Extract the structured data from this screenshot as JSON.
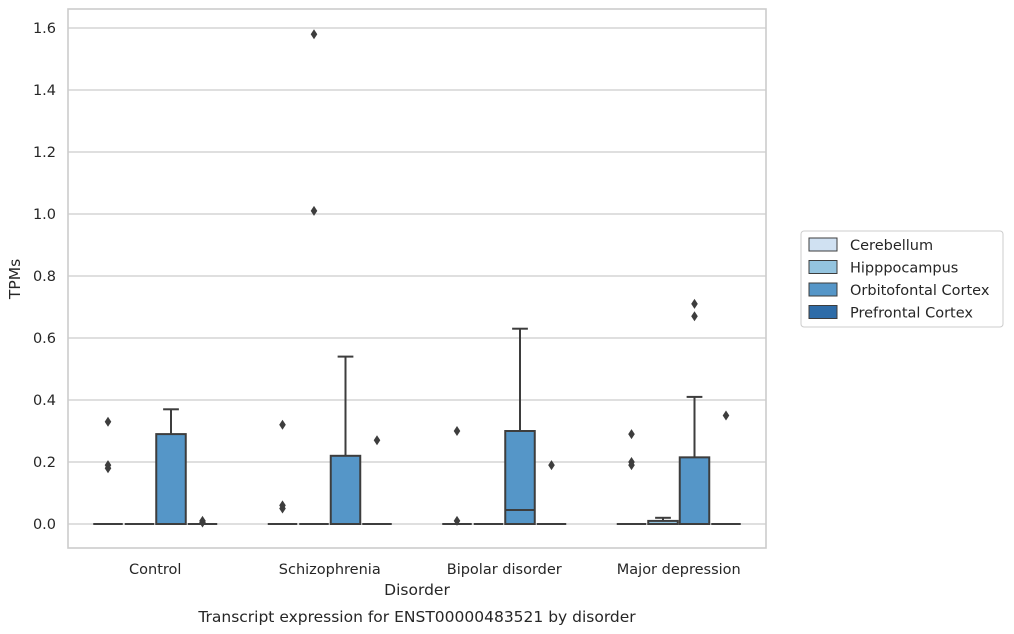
{
  "chart_data": {
    "type": "box",
    "title": "",
    "caption": "Transcript expression for ENST00000483521 by disorder",
    "xlabel": "Disorder",
    "ylabel": "TPMs",
    "ylim": [
      -0.08,
      1.66
    ],
    "yticks": [
      "0.0",
      "0.2",
      "0.4",
      "0.6",
      "0.8",
      "1.0",
      "1.2",
      "1.4",
      "1.6"
    ],
    "grid": true,
    "legend_position": "right",
    "categories": [
      "Control",
      "Schizophrenia",
      "Bipolar disorder",
      "Major depression"
    ],
    "series": [
      {
        "name": "Cerebellum",
        "color": "#d0e1f2",
        "boxes": [
          {
            "q1": 0,
            "median": 0,
            "q3": 0,
            "whislo": 0,
            "whishi": 0,
            "fliers": [
              0.33,
              0.19,
              0.18
            ]
          },
          {
            "q1": 0,
            "median": 0,
            "q3": 0,
            "whislo": 0,
            "whishi": 0,
            "fliers": [
              0.32,
              0.06,
              0.05
            ]
          },
          {
            "q1": 0,
            "median": 0,
            "q3": 0,
            "whislo": 0,
            "whishi": 0,
            "fliers": [
              0.3,
              0.01
            ]
          },
          {
            "q1": 0,
            "median": 0,
            "q3": 0,
            "whislo": 0,
            "whishi": 0,
            "fliers": [
              0.29,
              0.2,
              0.19
            ]
          }
        ]
      },
      {
        "name": "Hipppocampus",
        "color": "#94c4df",
        "boxes": [
          {
            "q1": 0,
            "median": 0,
            "q3": 0,
            "whislo": 0,
            "whishi": 0,
            "fliers": []
          },
          {
            "q1": 0,
            "median": 0,
            "q3": 0,
            "whislo": 0,
            "whishi": 0,
            "fliers": [
              1.58,
              1.01
            ]
          },
          {
            "q1": 0,
            "median": 0,
            "q3": 0,
            "whislo": 0,
            "whishi": 0,
            "fliers": []
          },
          {
            "q1": 0,
            "median": 0,
            "q3": 0.01,
            "whislo": 0,
            "whishi": 0.02,
            "fliers": []
          }
        ]
      },
      {
        "name": "Orbitofontal Cortex",
        "color": "#5596c8",
        "boxes": [
          {
            "q1": 0,
            "median": 0,
            "q3": 0.29,
            "whislo": 0,
            "whishi": 0.37,
            "fliers": []
          },
          {
            "q1": 0,
            "median": 0,
            "q3": 0.22,
            "whislo": 0,
            "whishi": 0.54,
            "fliers": []
          },
          {
            "q1": 0,
            "median": 0.045,
            "q3": 0.3,
            "whislo": 0,
            "whishi": 0.63,
            "fliers": []
          },
          {
            "q1": 0,
            "median": 0,
            "q3": 0.215,
            "whislo": 0,
            "whishi": 0.41,
            "fliers": [
              0.71,
              0.67
            ]
          }
        ]
      },
      {
        "name": "Prefrontal Cortex",
        "color": "#2e6ca8",
        "boxes": [
          {
            "q1": 0,
            "median": 0,
            "q3": 0,
            "whislo": 0,
            "whishi": 0,
            "fliers": [
              0.01,
              0.005
            ]
          },
          {
            "q1": 0,
            "median": 0,
            "q3": 0,
            "whislo": 0,
            "whishi": 0,
            "fliers": [
              0.27
            ]
          },
          {
            "q1": 0,
            "median": 0,
            "q3": 0,
            "whislo": 0,
            "whishi": 0,
            "fliers": [
              0.19
            ]
          },
          {
            "q1": 0,
            "median": 0,
            "q3": 0,
            "whislo": 0,
            "whishi": 0,
            "fliers": [
              0.35
            ]
          }
        ]
      }
    ]
  }
}
